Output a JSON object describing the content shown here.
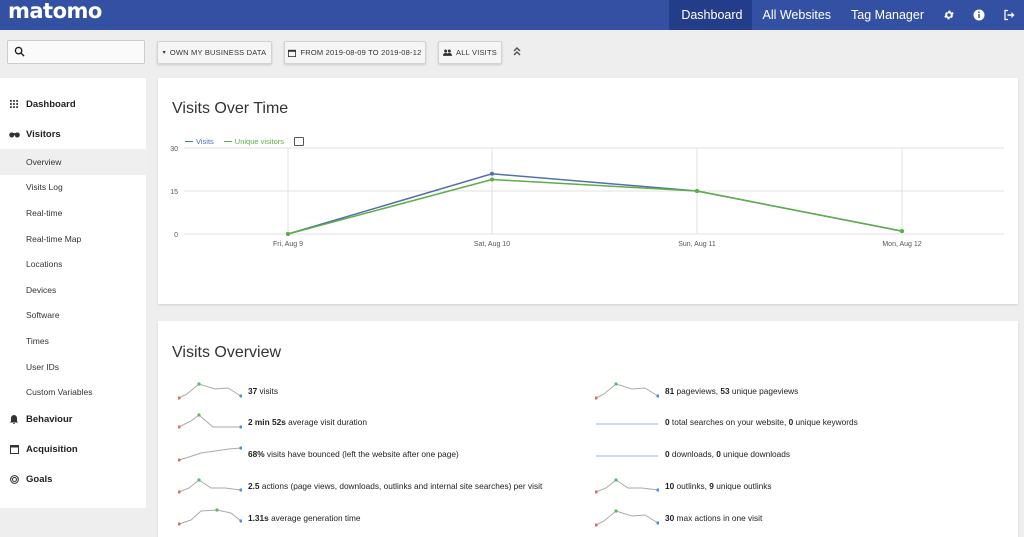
{
  "brand": {
    "logo": "matomo"
  },
  "topnav": {
    "items": [
      {
        "label": "Dashboard",
        "active": true
      },
      {
        "label": "All Websites"
      },
      {
        "label": "Tag Manager"
      }
    ],
    "icons": [
      "gear-icon",
      "info-icon",
      "logout-icon"
    ]
  },
  "controls": {
    "site_selector": "OWN MY BUSINESS DATA",
    "period": "FROM 2019-08-09 TO 2019-08-12",
    "segment": "ALL VISITS"
  },
  "sidebar": {
    "categories": [
      {
        "label": "Dashboard",
        "icon": "grid-icon"
      },
      {
        "label": "Visitors",
        "icon": "binoculars-icon",
        "items": [
          "Overview",
          "Visits Log",
          "Real-time",
          "Real-time Map",
          "Locations",
          "Devices",
          "Software",
          "Times",
          "User IDs",
          "Custom Variables"
        ]
      },
      {
        "label": "Behaviour",
        "icon": "bell-icon"
      },
      {
        "label": "Acquisition",
        "icon": "acquisition-icon"
      },
      {
        "label": "Goals",
        "icon": "target-icon"
      }
    ],
    "active_item": "Overview"
  },
  "visits_over_time": {
    "title": "Visits Over Time",
    "colors": {
      "visits": "#5170ad",
      "unique": "#5cae46"
    },
    "chart_data": {
      "type": "line",
      "categories": [
        "Fri, Aug 9",
        "Sat, Aug 10",
        "Sun, Aug 11",
        "Mon, Aug 12"
      ],
      "series": [
        {
          "name": "Visits",
          "values": [
            0,
            21,
            15,
            1
          ]
        },
        {
          "name": "Unique visitors",
          "values": [
            0,
            19,
            15,
            1
          ]
        }
      ],
      "yticks": [
        "30",
        "15",
        "0"
      ],
      "ylim": [
        0,
        30
      ],
      "legend": "top-left",
      "grid": true
    }
  },
  "visits_overview": {
    "title": "Visits Overview",
    "rows": [
      {
        "bold": "37",
        "text": " visits",
        "spark": "a",
        "col": 0
      },
      {
        "bold": "2 min 52s",
        "text": " average visit duration",
        "spark": "b",
        "col": 0
      },
      {
        "bold": "68%",
        "text": " visits have bounced (left the website after one page)",
        "spark": "c",
        "col": 0
      },
      {
        "bold": "2.5",
        "text": " actions (page views, downloads, outlinks and internal site searches) per visit",
        "spark": "d",
        "col": 0
      },
      {
        "bold": "1.31s",
        "text": " average generation time",
        "spark": "e",
        "col": 0
      },
      {
        "bold": "81",
        "text": " pageviews, ",
        "bold2": "53",
        "text2": " unique pageviews",
        "spark": "a",
        "col": 1
      },
      {
        "bold": "0",
        "text": " total searches on your website, ",
        "bold2": "0",
        "text2": " unique keywords",
        "spark": "flat",
        "col": 1
      },
      {
        "bold": "0",
        "text": " downloads, ",
        "bold2": "0",
        "text2": " unique downloads",
        "spark": "flat",
        "col": 1
      },
      {
        "bold": "10",
        "text": " outlinks, ",
        "bold2": "9",
        "text2": " unique outlinks",
        "spark": "d",
        "col": 1
      },
      {
        "bold": "30",
        "text": " max actions in one visit",
        "spark": "a",
        "col": 1
      }
    ]
  }
}
